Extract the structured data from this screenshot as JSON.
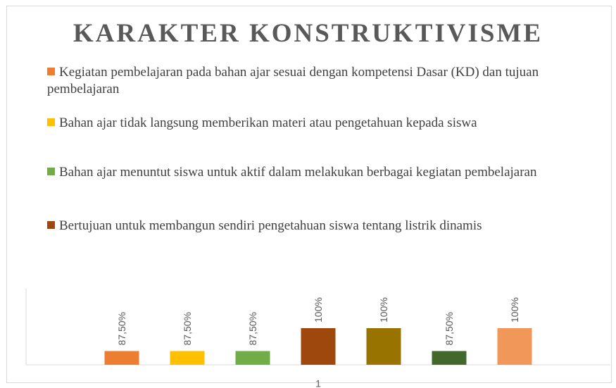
{
  "chart_data": {
    "type": "bar",
    "title": "KARAKTER KONSTRUKTIVISME",
    "categories": [
      "1"
    ],
    "series": [
      {
        "name": "Kegiatan pembelajaran pada bahan ajar sesuai dengan kompetensi Dasar (KD) dan tujuan pembelajaran",
        "color": "#ed7d31",
        "values": [
          87.5
        ],
        "value_labels": [
          "87,50%"
        ]
      },
      {
        "name": "Bahan ajar tidak langsung memberikan materi atau pengetahuan kepada siswa",
        "color": "#ffc000",
        "values": [
          87.5
        ],
        "value_labels": [
          "87,50%"
        ]
      },
      {
        "name": "Bahan ajar menuntut siswa untuk aktif dalam melakukan berbagai kegiatan pembelajaran",
        "color": "#70ad47",
        "values": [
          87.5
        ],
        "value_labels": [
          "87,50%"
        ]
      },
      {
        "name": "Bertujuan untuk membangun sendiri pengetahuan siswa tentang listrik dinamis",
        "color": "#9e480e",
        "values": [
          100
        ],
        "value_labels": [
          "100%"
        ]
      },
      {
        "color": "#997300",
        "values": [
          100
        ],
        "value_labels": [
          "100%"
        ]
      },
      {
        "color": "#43682b",
        "values": [
          87.5
        ],
        "value_labels": [
          "87,50%"
        ]
      },
      {
        "color": "#f1975a",
        "values": [
          100
        ],
        "value_labels": [
          "100%"
        ]
      }
    ],
    "ylim": [
      80,
      130
    ]
  }
}
